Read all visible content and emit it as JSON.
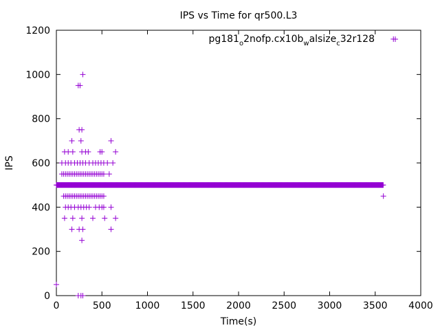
{
  "chart_data": {
    "type": "scatter",
    "title": "IPS vs Time for qr500.L3",
    "xlabel": "Time(s)",
    "ylabel": "IPS",
    "xlim": [
      0,
      4000
    ],
    "ylim": [
      0,
      1200
    ],
    "xticks": [
      "0",
      "500",
      "1000",
      "1500",
      "2000",
      "2500",
      "3000",
      "3500",
      "4000"
    ],
    "yticks": [
      "0",
      "200",
      "400",
      "600",
      "800",
      "1000",
      "1200"
    ],
    "grid": false,
    "legend": {
      "position": "top-right",
      "label_parts": [
        "pg181",
        "o",
        "2nofp.cx10b",
        "w",
        "alsize",
        "c",
        "32r128"
      ]
    },
    "marker": "+",
    "color": "#9400d3",
    "series": [
      {
        "name": "pg181_o2nofp.cx10b_walsize_c32r128",
        "baseline": {
          "y": 500,
          "x_from": 0,
          "x_to": 3590,
          "step": 4
        },
        "points": [
          [
            0,
            50
          ],
          [
            240,
            0
          ],
          [
            270,
            0
          ],
          [
            290,
            0
          ],
          [
            240,
            950
          ],
          [
            260,
            950
          ],
          [
            290,
            1000
          ],
          [
            250,
            750
          ],
          [
            280,
            750
          ],
          [
            170,
            700
          ],
          [
            270,
            700
          ],
          [
            600,
            700
          ],
          [
            90,
            650
          ],
          [
            130,
            650
          ],
          [
            180,
            650
          ],
          [
            280,
            650
          ],
          [
            320,
            650
          ],
          [
            350,
            650
          ],
          [
            480,
            650
          ],
          [
            500,
            650
          ],
          [
            650,
            650
          ],
          [
            60,
            600
          ],
          [
            100,
            600
          ],
          [
            130,
            600
          ],
          [
            160,
            600
          ],
          [
            200,
            600
          ],
          [
            230,
            600
          ],
          [
            260,
            600
          ],
          [
            290,
            600
          ],
          [
            320,
            600
          ],
          [
            360,
            600
          ],
          [
            400,
            600
          ],
          [
            430,
            600
          ],
          [
            460,
            600
          ],
          [
            490,
            600
          ],
          [
            520,
            600
          ],
          [
            560,
            600
          ],
          [
            620,
            600
          ],
          [
            60,
            550
          ],
          [
            80,
            550
          ],
          [
            100,
            550
          ],
          [
            120,
            550
          ],
          [
            140,
            550
          ],
          [
            160,
            550
          ],
          [
            180,
            550
          ],
          [
            200,
            550
          ],
          [
            220,
            550
          ],
          [
            240,
            550
          ],
          [
            260,
            550
          ],
          [
            280,
            550
          ],
          [
            300,
            550
          ],
          [
            320,
            550
          ],
          [
            340,
            550
          ],
          [
            360,
            550
          ],
          [
            380,
            550
          ],
          [
            400,
            550
          ],
          [
            420,
            550
          ],
          [
            440,
            550
          ],
          [
            460,
            550
          ],
          [
            480,
            550
          ],
          [
            500,
            550
          ],
          [
            520,
            550
          ],
          [
            580,
            550
          ],
          [
            80,
            450
          ],
          [
            100,
            450
          ],
          [
            120,
            450
          ],
          [
            140,
            450
          ],
          [
            160,
            450
          ],
          [
            180,
            450
          ],
          [
            200,
            450
          ],
          [
            220,
            450
          ],
          [
            240,
            450
          ],
          [
            260,
            450
          ],
          [
            280,
            450
          ],
          [
            300,
            450
          ],
          [
            320,
            450
          ],
          [
            340,
            450
          ],
          [
            360,
            450
          ],
          [
            380,
            450
          ],
          [
            400,
            450
          ],
          [
            420,
            450
          ],
          [
            440,
            450
          ],
          [
            460,
            450
          ],
          [
            480,
            450
          ],
          [
            500,
            450
          ],
          [
            520,
            450
          ],
          [
            3590,
            450
          ],
          [
            100,
            400
          ],
          [
            130,
            400
          ],
          [
            160,
            400
          ],
          [
            200,
            400
          ],
          [
            240,
            400
          ],
          [
            270,
            400
          ],
          [
            300,
            400
          ],
          [
            330,
            400
          ],
          [
            360,
            400
          ],
          [
            430,
            400
          ],
          [
            470,
            400
          ],
          [
            500,
            400
          ],
          [
            520,
            400
          ],
          [
            600,
            400
          ],
          [
            90,
            350
          ],
          [
            180,
            350
          ],
          [
            280,
            350
          ],
          [
            400,
            350
          ],
          [
            530,
            350
          ],
          [
            650,
            350
          ],
          [
            170,
            300
          ],
          [
            250,
            300
          ],
          [
            290,
            300
          ],
          [
            600,
            300
          ],
          [
            280,
            250
          ],
          [
            3700,
            1160
          ]
        ]
      }
    ]
  }
}
